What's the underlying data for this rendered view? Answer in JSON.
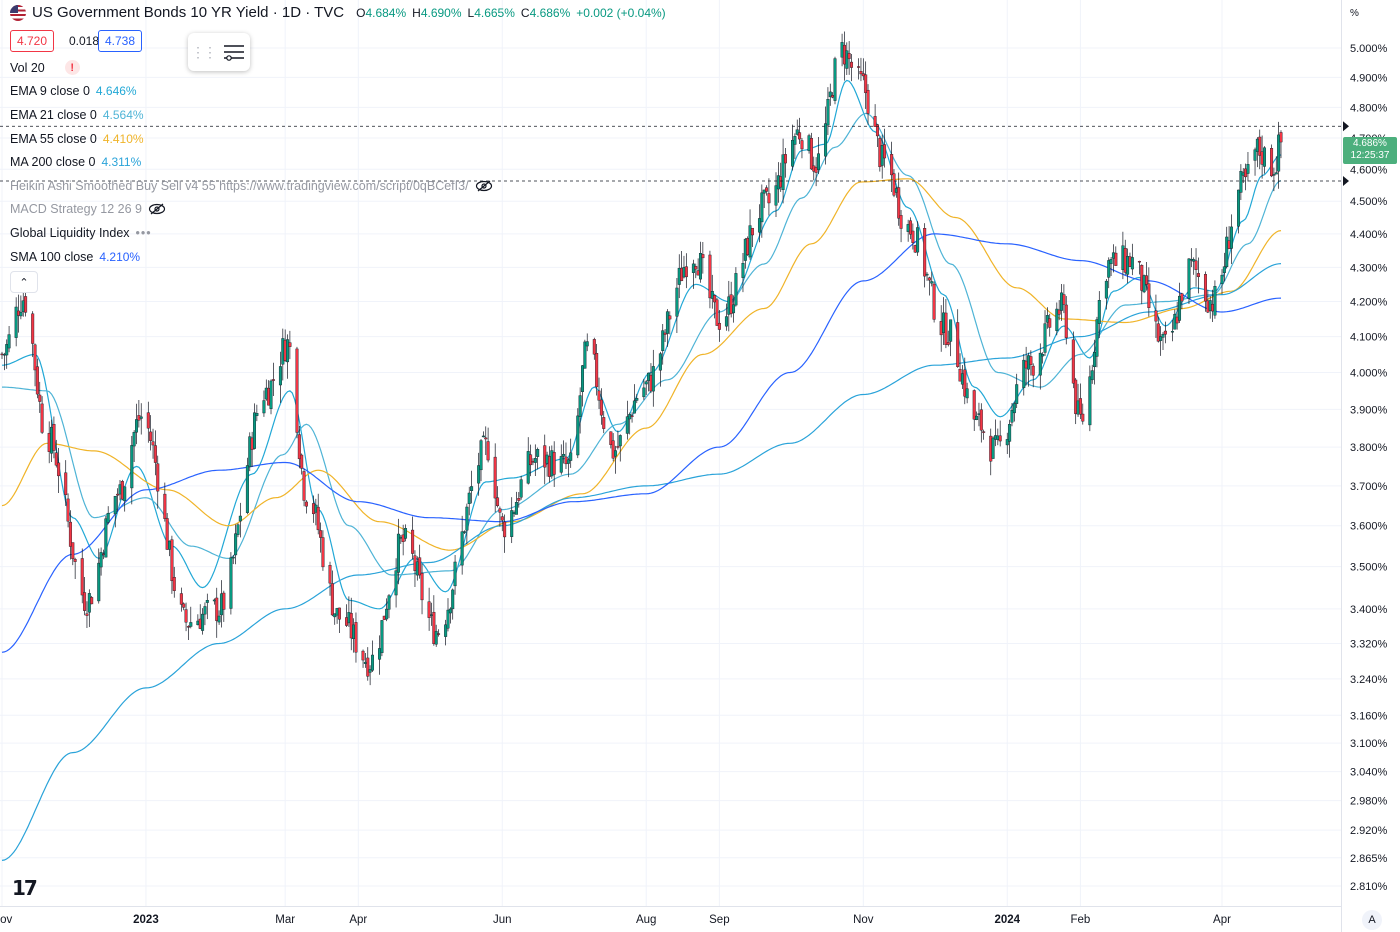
{
  "header": {
    "title": "US Government Bonds 10 YR Yield · 1D · TVC",
    "ohlc": [
      {
        "k": "O",
        "v": "4.684%"
      },
      {
        "k": "H",
        "v": "4.690%"
      },
      {
        "k": "L",
        "v": "4.665%"
      },
      {
        "k": "C",
        "v": "4.686%"
      },
      {
        "k": "",
        "v": "+0.002 (+0.04%)"
      }
    ]
  },
  "trade": {
    "sell": "4.720",
    "spread": "0.018",
    "buy": "4.738"
  },
  "indicators": {
    "vol": {
      "label": "Vol 20",
      "warn": "!"
    },
    "ema9": {
      "label": "EMA 9 close 0",
      "value": "4.646%",
      "color": "#22a8d6"
    },
    "ema21": {
      "label": "EMA 21 close 0",
      "value": "4.564%",
      "color": "#4fb4d6"
    },
    "ema55": {
      "label": "EMA 55 close 0",
      "value": "4.410%",
      "color": "#f0b429"
    },
    "ma200": {
      "label": "MA 200 close 0",
      "value": "4.311%",
      "color": "#2aa3d9"
    },
    "heikin": {
      "label": "Heikin Ashi Smoothed Buy Sell v4 55 https://www.tradingview.com/script/0qBCefI3/"
    },
    "macd": {
      "label": "MACD Strategy 12 26 9"
    },
    "gli": {
      "label": "Global Liquidity Index",
      "dots": "•••"
    },
    "sma100": {
      "label": "SMA 100 close",
      "value": "4.210%",
      "color": "#2962ff"
    }
  },
  "collapse": "⌃",
  "logo": "17",
  "price_axis": {
    "unit": "%",
    "last_price": "4.686%",
    "countdown": "12:25:37",
    "auto": "A"
  },
  "chart_data": {
    "type": "candlestick",
    "title": "US Government Bonds 10 YR Yield · 1D · TVC",
    "yscale": "log",
    "ylim": [
      2.78,
      5.04
    ],
    "yticks": [
      5.0,
      4.9,
      4.8,
      4.7,
      4.6,
      4.5,
      4.4,
      4.3,
      4.2,
      4.1,
      4.0,
      3.9,
      3.8,
      3.7,
      3.6,
      3.5,
      3.4,
      3.32,
      3.24,
      3.16,
      3.1,
      3.04,
      2.98,
      2.92,
      2.865,
      2.81
    ],
    "ytick_labels": [
      "5.000%",
      "4.900%",
      "4.800%",
      "4.700%",
      "4.600%",
      "4.500%",
      "4.400%",
      "4.300%",
      "4.200%",
      "4.100%",
      "4.000%",
      "3.900%",
      "3.800%",
      "3.700%",
      "3.600%",
      "3.500%",
      "3.400%",
      "3.320%",
      "3.240%",
      "3.160%",
      "3.100%",
      "3.040%",
      "2.980%",
      "2.920%",
      "2.865%",
      "2.810%"
    ],
    "xticks": [
      {
        "date": "2022-11-01",
        "label": "Nov"
      },
      {
        "date": "2023-01-01",
        "label": "2023"
      },
      {
        "date": "2023-03-01",
        "label": "Mar"
      },
      {
        "date": "2023-04-01",
        "label": "Apr"
      },
      {
        "date": "2023-06-01",
        "label": "Jun"
      },
      {
        "date": "2023-08-01",
        "label": "Aug"
      },
      {
        "date": "2023-09-01",
        "label": "Sep"
      },
      {
        "date": "2023-11-01",
        "label": "Nov"
      },
      {
        "date": "2024-01-01",
        "label": "2024"
      },
      {
        "date": "2024-02-01",
        "label": "Feb"
      },
      {
        "date": "2024-04-01",
        "label": "Apr"
      }
    ],
    "grid": true,
    "close_path": [
      {
        "date": "2022-11-01",
        "close": 4.05
      },
      {
        "date": "2022-11-10",
        "close": 4.21
      },
      {
        "date": "2022-11-20",
        "close": 3.83
      },
      {
        "date": "2022-12-07",
        "close": 3.42
      },
      {
        "date": "2022-12-20",
        "close": 3.68
      },
      {
        "date": "2022-12-30",
        "close": 3.88
      },
      {
        "date": "2023-01-18",
        "close": 3.37
      },
      {
        "date": "2023-02-01",
        "close": 3.4
      },
      {
        "date": "2023-02-21",
        "close": 3.95
      },
      {
        "date": "2023-03-02",
        "close": 4.08
      },
      {
        "date": "2023-03-10",
        "close": 3.68
      },
      {
        "date": "2023-03-24",
        "close": 3.38
      },
      {
        "date": "2023-04-06",
        "close": 3.28
      },
      {
        "date": "2023-04-20",
        "close": 3.56
      },
      {
        "date": "2023-05-04",
        "close": 3.35
      },
      {
        "date": "2023-05-26",
        "close": 3.8
      },
      {
        "date": "2023-06-01",
        "close": 3.6
      },
      {
        "date": "2023-06-15",
        "close": 3.77
      },
      {
        "date": "2023-06-30",
        "close": 3.75
      },
      {
        "date": "2023-07-07",
        "close": 4.06
      },
      {
        "date": "2023-07-18",
        "close": 3.79
      },
      {
        "date": "2023-07-31",
        "close": 3.96
      },
      {
        "date": "2023-08-21",
        "close": 4.34
      },
      {
        "date": "2023-09-01",
        "close": 4.15
      },
      {
        "date": "2023-09-21",
        "close": 4.49
      },
      {
        "date": "2023-10-05",
        "close": 4.72
      },
      {
        "date": "2023-10-12",
        "close": 4.62
      },
      {
        "date": "2023-10-23",
        "close": 4.99
      },
      {
        "date": "2023-10-31",
        "close": 4.88
      },
      {
        "date": "2023-11-10",
        "close": 4.62
      },
      {
        "date": "2023-11-20",
        "close": 4.42
      },
      {
        "date": "2023-12-06",
        "close": 4.12
      },
      {
        "date": "2023-12-20",
        "close": 3.86
      },
      {
        "date": "2023-12-27",
        "close": 3.79
      },
      {
        "date": "2024-01-10",
        "close": 4.02
      },
      {
        "date": "2024-01-24",
        "close": 4.18
      },
      {
        "date": "2024-02-01",
        "close": 3.87
      },
      {
        "date": "2024-02-13",
        "close": 4.31
      },
      {
        "date": "2024-02-22",
        "close": 4.32
      },
      {
        "date": "2024-03-08",
        "close": 4.07
      },
      {
        "date": "2024-03-19",
        "close": 4.3
      },
      {
        "date": "2024-03-28",
        "close": 4.2
      },
      {
        "date": "2024-04-10",
        "close": 4.55
      },
      {
        "date": "2024-04-16",
        "close": 4.66
      },
      {
        "date": "2024-04-23",
        "close": 4.61
      },
      {
        "date": "2024-04-26",
        "close": 4.686
      }
    ],
    "series": [
      {
        "name": "EMA 9 close 0",
        "last": 4.646,
        "color": "#22a8d6",
        "points": [
          {
            "date": "2022-11-01",
            "y": 4.02
          },
          {
            "date": "2022-11-15",
            "y": 4.05
          },
          {
            "date": "2022-12-01",
            "y": 3.62
          },
          {
            "date": "2022-12-12",
            "y": 3.52
          },
          {
            "date": "2022-12-28",
            "y": 3.75
          },
          {
            "date": "2023-01-12",
            "y": 3.55
          },
          {
            "date": "2023-01-25",
            "y": 3.45
          },
          {
            "date": "2023-02-15",
            "y": 3.73
          },
          {
            "date": "2023-03-03",
            "y": 3.95
          },
          {
            "date": "2023-03-15",
            "y": 3.64
          },
          {
            "date": "2023-03-28",
            "y": 3.42
          },
          {
            "date": "2023-04-10",
            "y": 3.4
          },
          {
            "date": "2023-04-25",
            "y": 3.52
          },
          {
            "date": "2023-05-08",
            "y": 3.44
          },
          {
            "date": "2023-05-25",
            "y": 3.71
          },
          {
            "date": "2023-06-05",
            "y": 3.72
          },
          {
            "date": "2023-06-28",
            "y": 3.77
          },
          {
            "date": "2023-07-10",
            "y": 3.96
          },
          {
            "date": "2023-07-20",
            "y": 3.84
          },
          {
            "date": "2023-08-03",
            "y": 4.0
          },
          {
            "date": "2023-08-22",
            "y": 4.25
          },
          {
            "date": "2023-09-05",
            "y": 4.2
          },
          {
            "date": "2023-09-25",
            "y": 4.47
          },
          {
            "date": "2023-10-06",
            "y": 4.66
          },
          {
            "date": "2023-10-16",
            "y": 4.68
          },
          {
            "date": "2023-10-25",
            "y": 4.89
          },
          {
            "date": "2023-11-06",
            "y": 4.72
          },
          {
            "date": "2023-11-20",
            "y": 4.48
          },
          {
            "date": "2023-12-05",
            "y": 4.22
          },
          {
            "date": "2023-12-18",
            "y": 3.96
          },
          {
            "date": "2023-12-29",
            "y": 3.88
          },
          {
            "date": "2024-01-12",
            "y": 3.98
          },
          {
            "date": "2024-01-25",
            "y": 4.13
          },
          {
            "date": "2024-02-05",
            "y": 4.04
          },
          {
            "date": "2024-02-15",
            "y": 4.23
          },
          {
            "date": "2024-02-26",
            "y": 4.27
          },
          {
            "date": "2024-03-08",
            "y": 4.13
          },
          {
            "date": "2024-03-20",
            "y": 4.24
          },
          {
            "date": "2024-03-29",
            "y": 4.23
          },
          {
            "date": "2024-04-10",
            "y": 4.44
          },
          {
            "date": "2024-04-18",
            "y": 4.58
          },
          {
            "date": "2024-04-26",
            "y": 4.646
          }
        ]
      },
      {
        "name": "EMA 21 close 0",
        "last": 4.564,
        "color": "#4fb4d6",
        "points": [
          {
            "date": "2022-11-01",
            "y": 3.96
          },
          {
            "date": "2022-11-20",
            "y": 3.95
          },
          {
            "date": "2022-12-10",
            "y": 3.62
          },
          {
            "date": "2023-01-01",
            "y": 3.67
          },
          {
            "date": "2023-01-20",
            "y": 3.55
          },
          {
            "date": "2023-02-05",
            "y": 3.52
          },
          {
            "date": "2023-02-28",
            "y": 3.78
          },
          {
            "date": "2023-03-10",
            "y": 3.86
          },
          {
            "date": "2023-03-28",
            "y": 3.6
          },
          {
            "date": "2023-04-15",
            "y": 3.48
          },
          {
            "date": "2023-05-10",
            "y": 3.49
          },
          {
            "date": "2023-06-01",
            "y": 3.64
          },
          {
            "date": "2023-06-30",
            "y": 3.73
          },
          {
            "date": "2023-07-20",
            "y": 3.86
          },
          {
            "date": "2023-08-10",
            "y": 3.98
          },
          {
            "date": "2023-09-01",
            "y": 4.17
          },
          {
            "date": "2023-09-20",
            "y": 4.31
          },
          {
            "date": "2023-10-06",
            "y": 4.51
          },
          {
            "date": "2023-10-20",
            "y": 4.67
          },
          {
            "date": "2023-11-02",
            "y": 4.78
          },
          {
            "date": "2023-11-20",
            "y": 4.58
          },
          {
            "date": "2023-12-08",
            "y": 4.31
          },
          {
            "date": "2023-12-28",
            "y": 4.0
          },
          {
            "date": "2024-01-15",
            "y": 3.96
          },
          {
            "date": "2024-02-01",
            "y": 4.05
          },
          {
            "date": "2024-02-20",
            "y": 4.19
          },
          {
            "date": "2024-03-08",
            "y": 4.2
          },
          {
            "date": "2024-03-28",
            "y": 4.22
          },
          {
            "date": "2024-04-12",
            "y": 4.37
          },
          {
            "date": "2024-04-26",
            "y": 4.564
          }
        ]
      },
      {
        "name": "EMA 55 close 0",
        "last": 4.41,
        "color": "#f0b429",
        "points": [
          {
            "date": "2022-11-01",
            "y": 3.65
          },
          {
            "date": "2022-11-20",
            "y": 3.81
          },
          {
            "date": "2022-12-10",
            "y": 3.79
          },
          {
            "date": "2023-01-10",
            "y": 3.69
          },
          {
            "date": "2023-02-05",
            "y": 3.6
          },
          {
            "date": "2023-02-25",
            "y": 3.67
          },
          {
            "date": "2023-03-15",
            "y": 3.74
          },
          {
            "date": "2023-04-10",
            "y": 3.61
          },
          {
            "date": "2023-05-10",
            "y": 3.54
          },
          {
            "date": "2023-06-05",
            "y": 3.61
          },
          {
            "date": "2023-07-05",
            "y": 3.68
          },
          {
            "date": "2023-08-01",
            "y": 3.85
          },
          {
            "date": "2023-08-25",
            "y": 4.05
          },
          {
            "date": "2023-09-20",
            "y": 4.18
          },
          {
            "date": "2023-10-10",
            "y": 4.37
          },
          {
            "date": "2023-10-31",
            "y": 4.56
          },
          {
            "date": "2023-11-20",
            "y": 4.57
          },
          {
            "date": "2023-12-10",
            "y": 4.45
          },
          {
            "date": "2024-01-05",
            "y": 4.24
          },
          {
            "date": "2024-01-25",
            "y": 4.15
          },
          {
            "date": "2024-02-20",
            "y": 4.14
          },
          {
            "date": "2024-03-15",
            "y": 4.18
          },
          {
            "date": "2024-04-05",
            "y": 4.23
          },
          {
            "date": "2024-04-26",
            "y": 4.41
          }
        ]
      },
      {
        "name": "MA 200 close 0",
        "last": 4.311,
        "color": "#2aa3d9",
        "points": [
          {
            "date": "2022-11-01",
            "y": 2.86
          },
          {
            "date": "2022-12-01",
            "y": 3.08
          },
          {
            "date": "2023-01-01",
            "y": 3.22
          },
          {
            "date": "2023-02-01",
            "y": 3.32
          },
          {
            "date": "2023-03-01",
            "y": 3.4
          },
          {
            "date": "2023-04-01",
            "y": 3.48
          },
          {
            "date": "2023-05-01",
            "y": 3.51
          },
          {
            "date": "2023-06-01",
            "y": 3.6
          },
          {
            "date": "2023-07-01",
            "y": 3.67
          },
          {
            "date": "2023-08-01",
            "y": 3.7
          },
          {
            "date": "2023-09-01",
            "y": 3.73
          },
          {
            "date": "2023-10-01",
            "y": 3.81
          },
          {
            "date": "2023-11-01",
            "y": 3.94
          },
          {
            "date": "2023-12-01",
            "y": 4.02
          },
          {
            "date": "2024-01-01",
            "y": 4.04
          },
          {
            "date": "2024-02-01",
            "y": 4.1
          },
          {
            "date": "2024-03-01",
            "y": 4.17
          },
          {
            "date": "2024-04-01",
            "y": 4.22
          },
          {
            "date": "2024-04-26",
            "y": 4.311
          }
        ]
      },
      {
        "name": "SMA 100 close",
        "last": 4.21,
        "color": "#2962ff",
        "points": [
          {
            "date": "2022-11-01",
            "y": 3.3
          },
          {
            "date": "2022-12-01",
            "y": 3.53
          },
          {
            "date": "2023-01-01",
            "y": 3.69
          },
          {
            "date": "2023-02-01",
            "y": 3.74
          },
          {
            "date": "2023-03-01",
            "y": 3.76
          },
          {
            "date": "2023-04-01",
            "y": 3.66
          },
          {
            "date": "2023-05-01",
            "y": 3.62
          },
          {
            "date": "2023-06-01",
            "y": 3.61
          },
          {
            "date": "2023-07-01",
            "y": 3.66
          },
          {
            "date": "2023-08-01",
            "y": 3.68
          },
          {
            "date": "2023-09-01",
            "y": 3.8
          },
          {
            "date": "2023-10-01",
            "y": 4.0
          },
          {
            "date": "2023-11-01",
            "y": 4.26
          },
          {
            "date": "2023-12-01",
            "y": 4.4
          },
          {
            "date": "2024-01-01",
            "y": 4.37
          },
          {
            "date": "2024-02-01",
            "y": 4.32
          },
          {
            "date": "2024-03-01",
            "y": 4.26
          },
          {
            "date": "2024-04-01",
            "y": 4.17
          },
          {
            "date": "2024-04-26",
            "y": 4.21
          }
        ]
      }
    ],
    "price_lines": [
      4.738,
      4.563
    ]
  }
}
